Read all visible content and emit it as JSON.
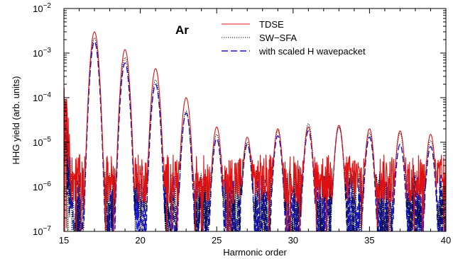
{
  "chart_data": {
    "type": "line",
    "panel_label": "Ar",
    "xlabel": "Harmonic order",
    "ylabel": "HHG yield (arb. units)",
    "xlim": [
      15,
      40
    ],
    "ylim_log10": [
      -7,
      -2
    ],
    "yscale": "log",
    "x_ticks": [
      15,
      20,
      25,
      30,
      35,
      40
    ],
    "x_tick_labels": [
      "15",
      "20",
      "25",
      "30",
      "35",
      "40"
    ],
    "y_tick_exponents": [
      -7,
      -6,
      -5,
      -4,
      -3,
      -2
    ],
    "y_tick_base": "10",
    "y_tick_exponent_labels": [
      "−7",
      "−6",
      "−5",
      "−4",
      "−3",
      "−2"
    ],
    "legend_position": "top-right",
    "series": [
      {
        "name": "TDSE",
        "color": "#e01010",
        "dash": "solid",
        "peaks_x": [
          17,
          19,
          21,
          23,
          25,
          27,
          29,
          31,
          33,
          35,
          37,
          39
        ],
        "peaks_y": [
          0.003,
          0.0012,
          0.00045,
          0.0001,
          2.2e-05,
          1.3e-05,
          2e-05,
          2.2e-05,
          2.4e-05,
          2e-05,
          1.8e-05,
          1.5e-05
        ],
        "floor_y": 1.5e-06,
        "noise": 0.55,
        "dip_y": 1.2e-07
      },
      {
        "name": "SW−SFA",
        "color": "#000000",
        "dash": "dotted",
        "peaks_x": [
          17,
          19,
          21,
          23,
          25,
          27,
          29,
          31,
          33,
          35,
          37,
          39
        ],
        "peaks_y": [
          0.0022,
          0.0008,
          0.00025,
          5e-05,
          1.5e-05,
          1e-05,
          1.8e-05,
          2.6e-05,
          2.2e-05,
          1.6e-05,
          1.6e-05,
          1.1e-05
        ],
        "floor_y": 3e-07,
        "noise": 0.9,
        "dip_y": 8e-08
      },
      {
        "name": "with scaled H wavepacket",
        "color": "#1515e0",
        "dash": "dashed",
        "peaks_x": [
          17,
          19,
          21,
          23,
          25,
          27,
          29,
          31,
          33,
          35,
          37,
          39
        ],
        "peaks_y": [
          0.0018,
          0.0006,
          0.0002,
          4.5e-05,
          1.2e-05,
          9e-06,
          1.4e-05,
          1.8e-05,
          2.3e-05,
          1.3e-05,
          9e-06,
          8e-06
        ],
        "floor_y": 2.5e-07,
        "noise": 0.9,
        "dip_y": 8e-08
      }
    ]
  }
}
